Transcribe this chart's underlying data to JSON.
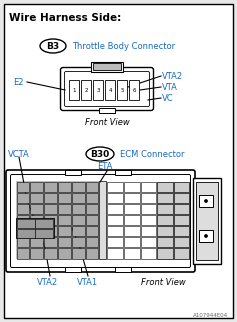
{
  "title": "Wire Harness Side:",
  "bg": "#e8e8e8",
  "white": "#ffffff",
  "black": "#000000",
  "blue": "#1a6bbf",
  "gray_dark": "#888888",
  "gray_cell": "#b0b0b0",
  "gray_mid": "#cccccc",
  "connector_b3_label": "B3",
  "connector_b3_title": "Throttle Body Connector",
  "connector_b30_label": "B30",
  "connector_b30_title": "ECM Connector",
  "front_view": "Front View",
  "eta_label": "ETA",
  "vcta_label": "VCTA",
  "e2_label": "E2",
  "vta2_label": "VTA2",
  "vta_label": "VTA",
  "vc_label": "VC",
  "vta2b_label": "VTA2",
  "vta1_label": "VTA1",
  "watermark": "A107944E04"
}
